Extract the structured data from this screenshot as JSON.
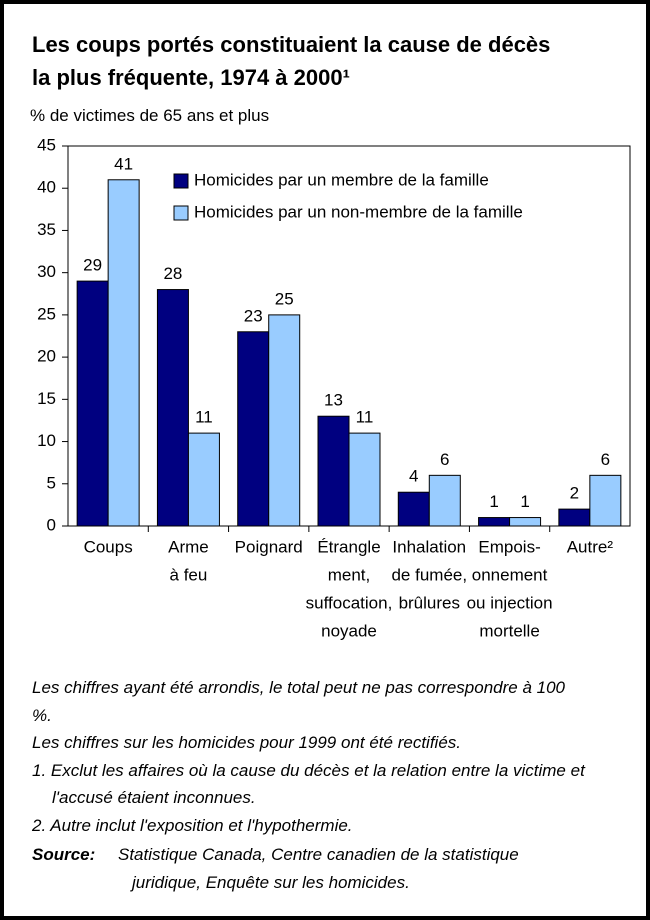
{
  "chart_data": {
    "type": "bar",
    "title": "Les coups portés constituaient la cause de décès la plus fréquente, 1974 à 2000¹",
    "subtitle": "% de victimes de 65 ans et plus",
    "categories": [
      [
        "Coups"
      ],
      [
        "Arme",
        "à feu"
      ],
      [
        "Poignard"
      ],
      [
        "Étrangle",
        "ment,",
        "suffocation,",
        "noyade"
      ],
      [
        "Inhalation",
        "de fumée,",
        "brûlures"
      ],
      [
        "Empois-",
        "onnement",
        "ou injection",
        "mortelle"
      ],
      [
        "Autre²"
      ]
    ],
    "series": [
      {
        "name": "Homicides par un membre de la famille",
        "color": "#000080",
        "values": [
          29,
          28,
          23,
          13,
          4,
          1,
          2
        ]
      },
      {
        "name": "Homicides par un non-membre de la famille",
        "color": "#99ccff",
        "values": [
          41,
          11,
          25,
          11,
          6,
          1,
          6
        ]
      }
    ],
    "ylim": [
      0,
      45
    ],
    "yticks": [
      0,
      5,
      10,
      15,
      20,
      25,
      30,
      35,
      40,
      45
    ],
    "grid": false,
    "legend": "upper right",
    "notes": [
      "Les chiffres ayant été arrondis, le total peut ne pas correspondre à 100 %.",
      "Les chiffres sur les homicides pour 1999 ont été rectifiés."
    ],
    "footnotes": [
      "1. Exclut les affaires où la cause du décès et la relation entre la victime et l'accusé étaient inconnues.",
      "2. Autre inclut l'exposition et l'hypothermie."
    ],
    "source_label": "Source:",
    "source": "Statistique Canada, Centre canadien de la statistique juridique, Enquête sur les homicides."
  }
}
